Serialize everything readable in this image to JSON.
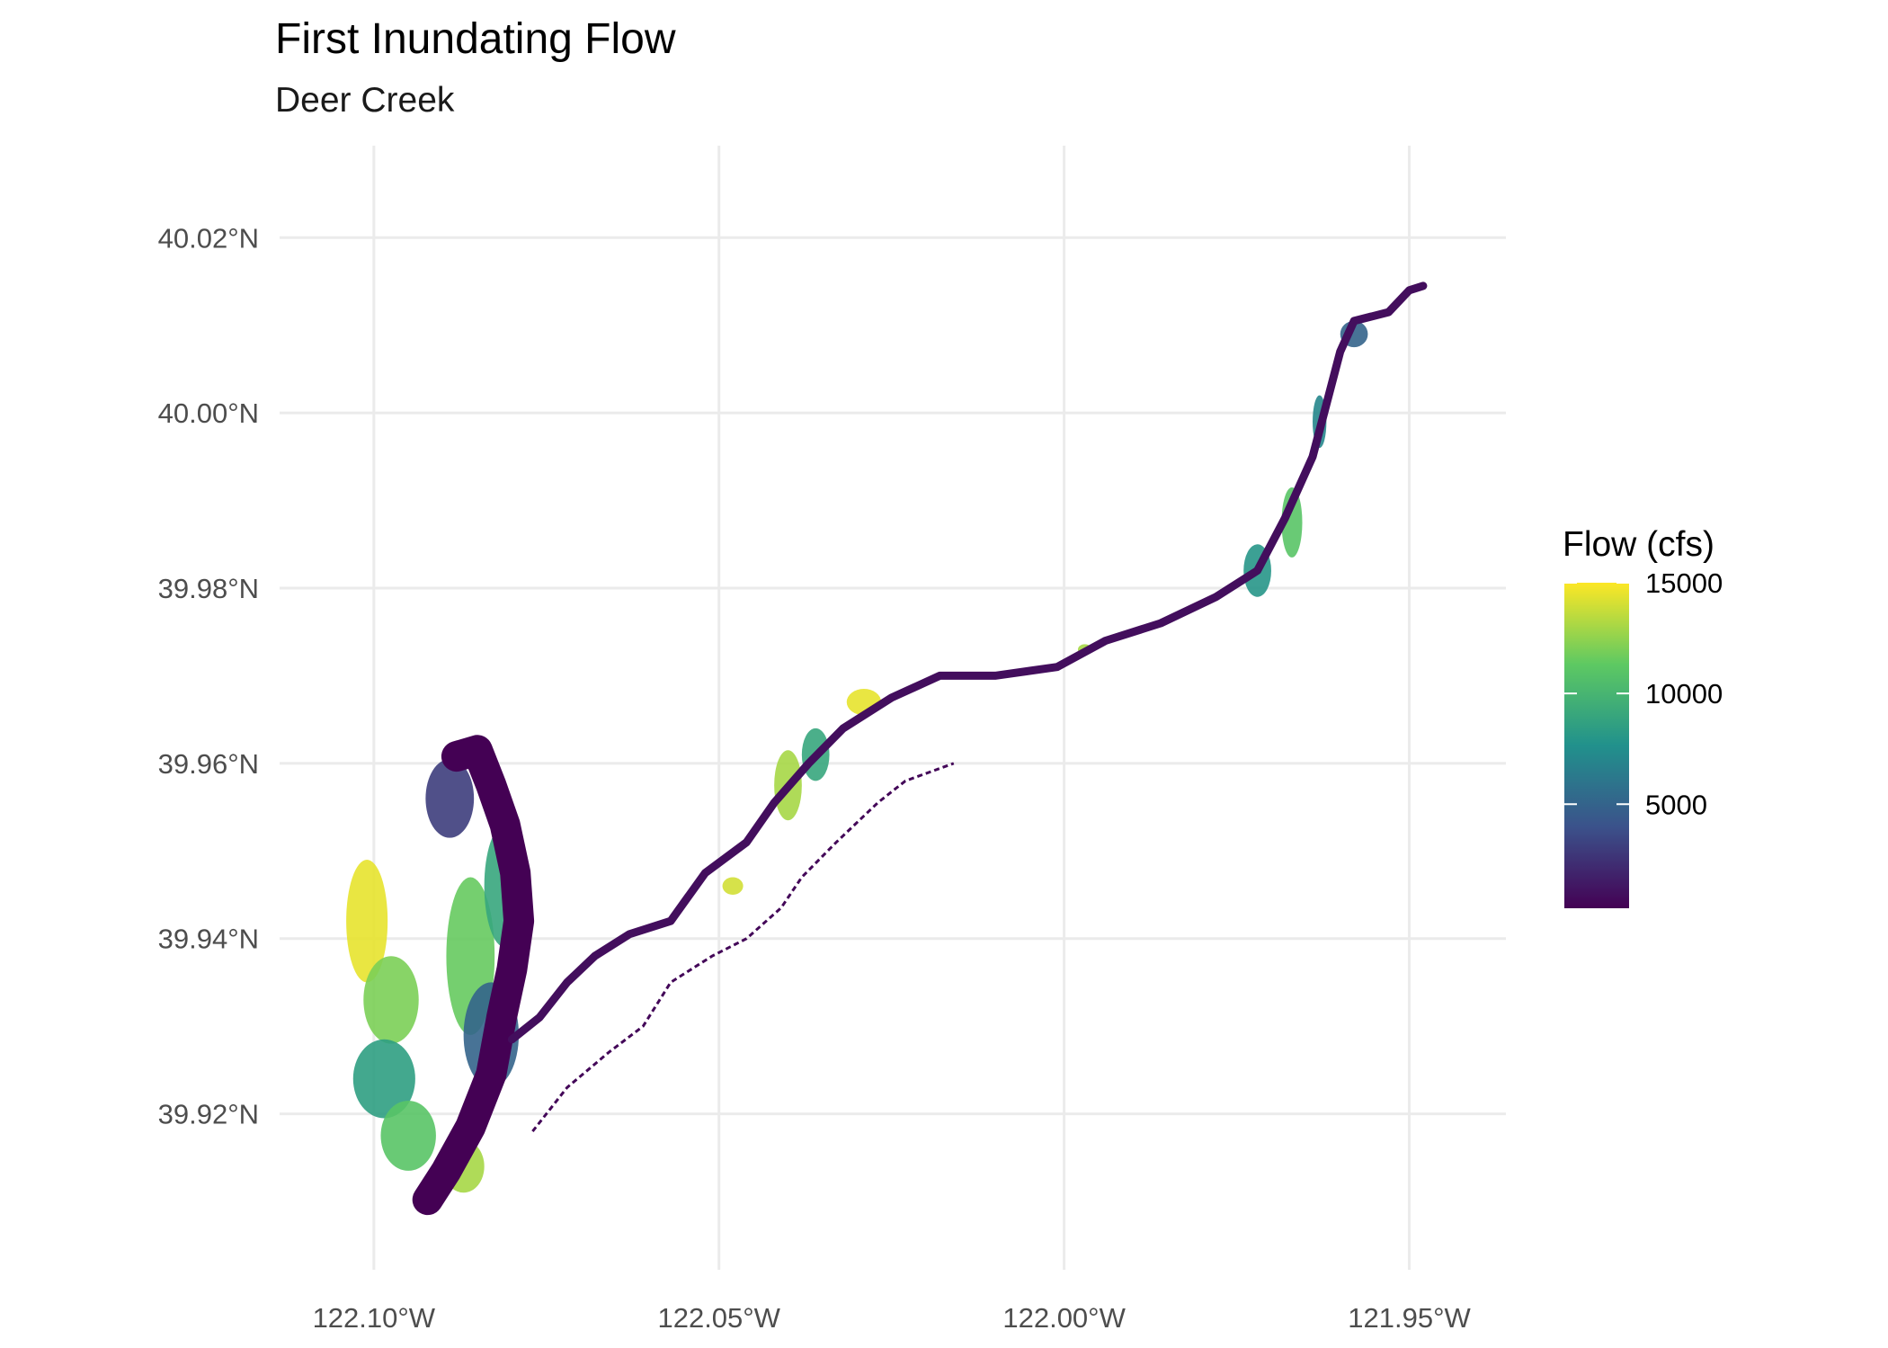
{
  "title": "First Inundating Flow",
  "subtitle": "Deer Creek",
  "x_axis": {
    "ticks": [
      "122.10°W",
      "122.05°W",
      "122.00°W",
      "121.95°W"
    ],
    "tick_values": [
      -122.1,
      -122.05,
      -122.0,
      -121.95
    ],
    "range": [
      -122.113,
      -121.936
    ]
  },
  "y_axis": {
    "ticks": [
      "39.92°N",
      "39.94°N",
      "39.96°N",
      "39.98°N",
      "40.00°N",
      "40.02°N"
    ],
    "tick_values": [
      39.92,
      39.94,
      39.96,
      39.98,
      40.0,
      40.02
    ],
    "range": [
      39.9022,
      40.0305
    ]
  },
  "legend": {
    "title": "Flow (cfs)",
    "labels": [
      "15000",
      "10000",
      "5000"
    ],
    "values": [
      15000,
      10000,
      5000
    ],
    "min": 300,
    "max": 15000,
    "colors": [
      "#440154",
      "#3b528b",
      "#21918c",
      "#5ec962",
      "#fde725"
    ]
  },
  "chart_data": {
    "type": "heatmap",
    "title": "First Inundating Flow",
    "subtitle": "Deer Creek",
    "xlabel": "",
    "ylabel": "",
    "grid": true,
    "legend_position": "right",
    "color_scale": "viridis",
    "fill_label": "Flow (cfs)",
    "fill_range": [
      300,
      15000
    ],
    "channel_path": [
      [
        -122.0922,
        39.9102
      ],
      [
        -122.0895,
        39.9135
      ],
      [
        -122.086,
        39.9185
      ],
      [
        -122.083,
        39.9245
      ],
      [
        -122.0815,
        39.931
      ],
      [
        -122.08,
        39.9365
      ],
      [
        -122.079,
        39.942
      ],
      [
        -122.0795,
        39.9475
      ],
      [
        -122.081,
        39.953
      ],
      [
        -122.083,
        39.9575
      ],
      [
        -122.085,
        39.9615
      ],
      [
        -122.088,
        39.9608
      ]
    ],
    "main_river_path": [
      [
        -122.08,
        39.9285
      ],
      [
        -122.076,
        39.931
      ],
      [
        -122.072,
        39.935
      ],
      [
        -122.068,
        39.938
      ],
      [
        -122.063,
        39.9405
      ],
      [
        -122.057,
        39.942
      ],
      [
        -122.052,
        39.9475
      ],
      [
        -122.046,
        39.951
      ],
      [
        -122.042,
        39.9555
      ],
      [
        -122.037,
        39.96
      ],
      [
        -122.032,
        39.964
      ],
      [
        -122.025,
        39.9675
      ],
      [
        -122.018,
        39.97
      ],
      [
        -122.01,
        39.97
      ],
      [
        -122.001,
        39.971
      ],
      [
        -121.994,
        39.974
      ],
      [
        -121.986,
        39.976
      ],
      [
        -121.978,
        39.979
      ],
      [
        -121.972,
        39.982
      ],
      [
        -121.968,
        39.988
      ],
      [
        -121.964,
        39.995
      ],
      [
        -121.962,
        40.001
      ],
      [
        -121.96,
        40.007
      ],
      [
        -121.958,
        40.0105
      ],
      [
        -121.953,
        40.0115
      ],
      [
        -121.95,
        40.014
      ],
      [
        -121.948,
        40.0145
      ]
    ],
    "secondary_channel_path": [
      [
        -122.077,
        39.918
      ],
      [
        -122.072,
        39.923
      ],
      [
        -122.066,
        39.927
      ],
      [
        -122.061,
        39.93
      ],
      [
        -122.057,
        39.935
      ],
      [
        -122.051,
        39.938
      ],
      [
        -122.046,
        39.94
      ],
      [
        -122.041,
        39.9435
      ],
      [
        -122.038,
        39.947
      ],
      [
        -122.033,
        39.951
      ],
      [
        -122.027,
        39.9555
      ],
      [
        -122.023,
        39.958
      ],
      [
        -122.016,
        39.96
      ]
    ],
    "floodplain_patches": [
      {
        "lon": -122.101,
        "lat": 39.942,
        "rx": 0.003,
        "ry": 0.007,
        "flow": 14500
      },
      {
        "lon": -122.0975,
        "lat": 39.933,
        "rx": 0.004,
        "ry": 0.005,
        "flow": 12000
      },
      {
        "lon": -122.0985,
        "lat": 39.924,
        "rx": 0.0045,
        "ry": 0.0045,
        "flow": 8500
      },
      {
        "lon": -122.095,
        "lat": 39.9175,
        "rx": 0.004,
        "ry": 0.004,
        "flow": 11000
      },
      {
        "lon": -122.087,
        "lat": 39.914,
        "rx": 0.003,
        "ry": 0.003,
        "flow": 13000
      },
      {
        "lon": -122.086,
        "lat": 39.938,
        "rx": 0.0035,
        "ry": 0.009,
        "flow": 11500
      },
      {
        "lon": -122.081,
        "lat": 39.946,
        "rx": 0.003,
        "ry": 0.007,
        "flow": 9000
      },
      {
        "lon": -122.089,
        "lat": 39.956,
        "rx": 0.0035,
        "ry": 0.0045,
        "flow": 3000
      },
      {
        "lon": -122.083,
        "lat": 39.929,
        "rx": 0.004,
        "ry": 0.006,
        "flow": 5000
      },
      {
        "lon": -122.04,
        "lat": 39.9575,
        "rx": 0.002,
        "ry": 0.004,
        "flow": 13000
      },
      {
        "lon": -122.036,
        "lat": 39.961,
        "rx": 0.002,
        "ry": 0.003,
        "flow": 9000
      },
      {
        "lon": -122.029,
        "lat": 39.967,
        "rx": 0.0025,
        "ry": 0.0015,
        "flow": 14500
      },
      {
        "lon": -122.048,
        "lat": 39.946,
        "rx": 0.0015,
        "ry": 0.001,
        "flow": 14000
      },
      {
        "lon": -121.997,
        "lat": 39.973,
        "rx": 0.001,
        "ry": 0.0006,
        "flow": 13000
      },
      {
        "lon": -121.972,
        "lat": 39.982,
        "rx": 0.002,
        "ry": 0.003,
        "flow": 8000
      },
      {
        "lon": -121.967,
        "lat": 39.9875,
        "rx": 0.0015,
        "ry": 0.004,
        "flow": 11000
      },
      {
        "lon": -121.963,
        "lat": 39.999,
        "rx": 0.001,
        "ry": 0.003,
        "flow": 7000
      },
      {
        "lon": -121.958,
        "lat": 40.009,
        "rx": 0.002,
        "ry": 0.0015,
        "flow": 5000
      }
    ]
  }
}
